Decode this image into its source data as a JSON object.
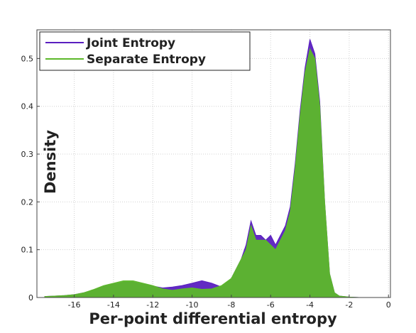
{
  "chart_data": {
    "type": "area",
    "xlabel": "Per-point differential entropy",
    "ylabel": "Density",
    "x": [
      -17.5,
      -17,
      -16.5,
      -16,
      -15.5,
      -15,
      -14.5,
      -14,
      -13.5,
      -13,
      -12.5,
      -12,
      -11.5,
      -11,
      -10.5,
      -10,
      -9.5,
      -9,
      -8.5,
      -8,
      -7.75,
      -7.5,
      -7.25,
      -7,
      -6.75,
      -6.5,
      -6.25,
      -6,
      -5.75,
      -5.5,
      -5.25,
      -5,
      -4.75,
      -4.5,
      -4.25,
      -4,
      -3.75,
      -3.5,
      -3.25,
      -3,
      -2.75,
      -2.5,
      -2,
      -1.5,
      -1,
      -0.5,
      0
    ],
    "series": [
      {
        "name": "Joint Entropy",
        "color": "#5a1fc0",
        "values": [
          0.002,
          0.003,
          0.004,
          0.006,
          0.01,
          0.016,
          0.023,
          0.028,
          0.032,
          0.032,
          0.028,
          0.024,
          0.02,
          0.022,
          0.025,
          0.03,
          0.035,
          0.03,
          0.022,
          0.04,
          0.06,
          0.08,
          0.11,
          0.16,
          0.13,
          0.13,
          0.12,
          0.13,
          0.11,
          0.13,
          0.15,
          0.19,
          0.28,
          0.39,
          0.48,
          0.54,
          0.51,
          0.41,
          0.2,
          0.05,
          0.01,
          0.003,
          0.001,
          0,
          0,
          0,
          0
        ]
      },
      {
        "name": "Separate Entropy",
        "color": "#5cb82a",
        "values": [
          0.002,
          0.003,
          0.004,
          0.006,
          0.01,
          0.017,
          0.025,
          0.03,
          0.035,
          0.035,
          0.03,
          0.025,
          0.018,
          0.015,
          0.018,
          0.02,
          0.017,
          0.018,
          0.025,
          0.04,
          0.06,
          0.08,
          0.1,
          0.15,
          0.12,
          0.12,
          0.12,
          0.11,
          0.1,
          0.12,
          0.14,
          0.18,
          0.27,
          0.38,
          0.47,
          0.52,
          0.5,
          0.4,
          0.2,
          0.05,
          0.01,
          0.003,
          0.001,
          0,
          0,
          0,
          0
        ]
      }
    ],
    "xlim": [
      -17.9,
      0.1
    ],
    "ylim": [
      0,
      0.56
    ],
    "xticks": [
      -16,
      -14,
      -12,
      -10,
      -8,
      -6,
      -4,
      -2,
      0
    ],
    "yticks": [
      0,
      0.1,
      0.2,
      0.3,
      0.4,
      0.5
    ],
    "grid": true,
    "legend": "upper left"
  }
}
